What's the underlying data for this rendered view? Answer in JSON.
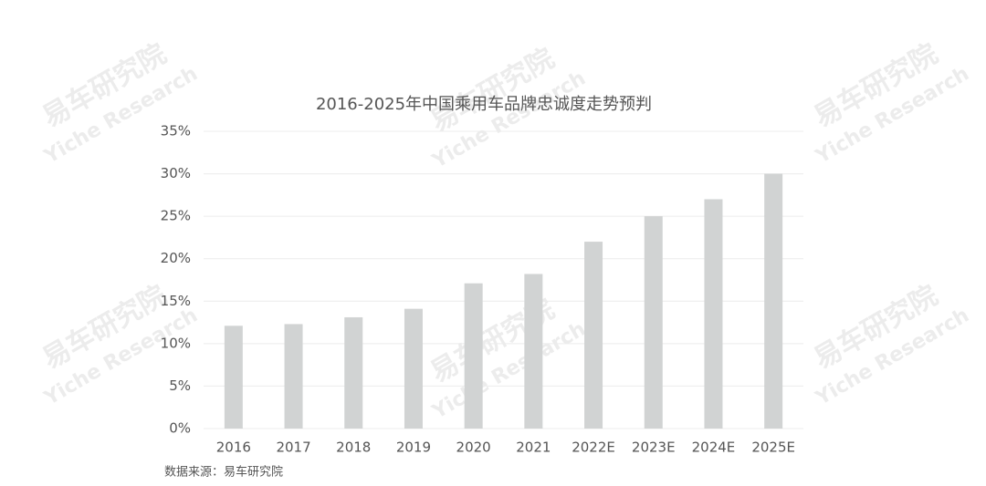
{
  "chart_data": {
    "type": "bar",
    "title": "2016-2025年中国乘用车品牌忠诚度走势预判",
    "categories": [
      "2016",
      "2017",
      "2018",
      "2019",
      "2020",
      "2021",
      "2022E",
      "2023E",
      "2024E",
      "2025E"
    ],
    "values": [
      12.1,
      12.3,
      13.1,
      14.1,
      17.1,
      18.2,
      22,
      25,
      27,
      30
    ],
    "color": "#d1d3d3",
    "ylim": [
      0,
      35
    ],
    "yticks": [
      {
        "value": 0,
        "label": "0%"
      },
      {
        "value": 5,
        "label": "5%"
      },
      {
        "value": 10,
        "label": "10%"
      },
      {
        "value": 15,
        "label": "15%"
      },
      {
        "value": 20,
        "label": "20%"
      },
      {
        "value": 25,
        "label": "25%"
      },
      {
        "value": 30,
        "label": "30%"
      },
      {
        "value": 35,
        "label": "35%"
      }
    ],
    "grid": true,
    "source": "数据来源：易车研究院",
    "watermark": {
      "brand": "易车研究院",
      "text": "Yiche Research"
    }
  }
}
